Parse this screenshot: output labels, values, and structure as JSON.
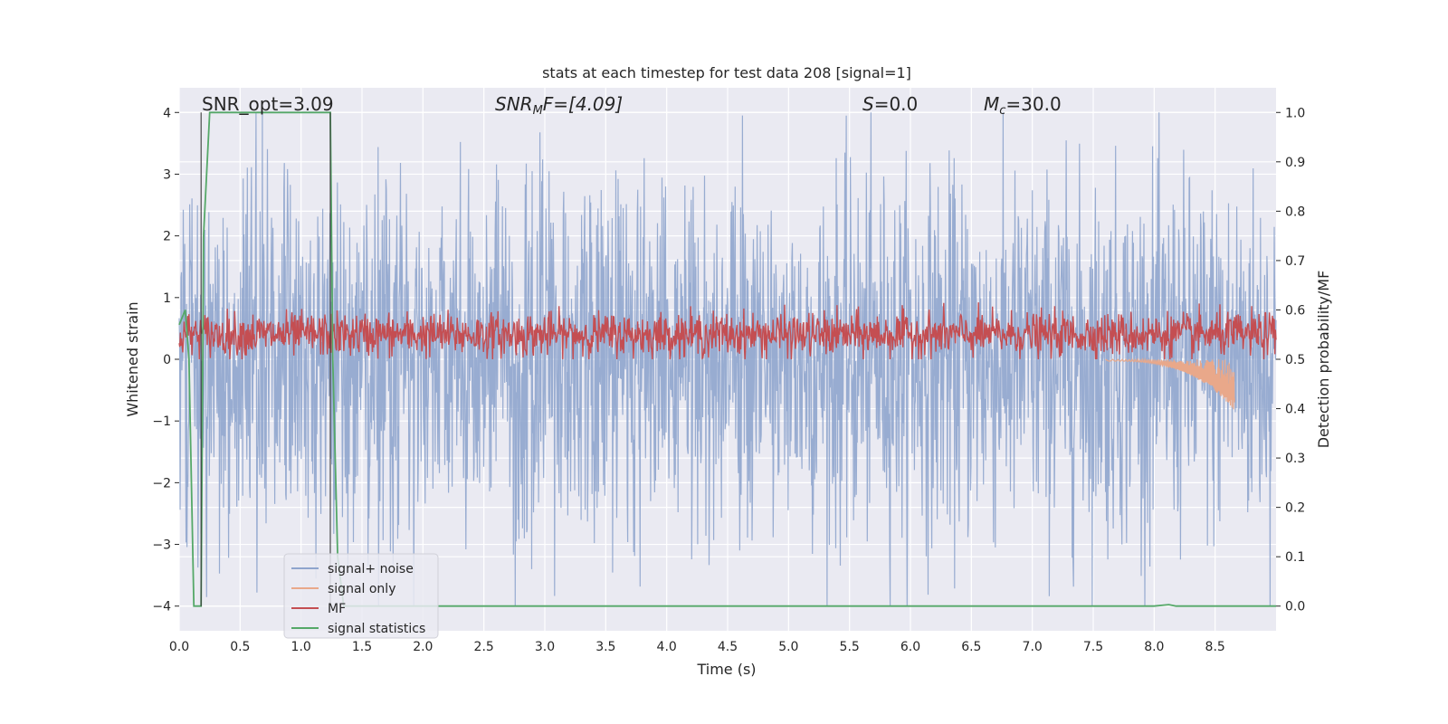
{
  "chart_data": {
    "type": "line",
    "title": "stats at each timestep for test data 208 [signal=1]",
    "xlabel": "Time (s)",
    "ylabel": "Whitened strain",
    "y2label": "Detection probability/MF",
    "xlim": [
      0.0,
      9.0
    ],
    "ylim": [
      -4.4,
      4.4
    ],
    "y2lim": [
      -0.05,
      1.05
    ],
    "x_ticks": [
      "0.0",
      "0.5",
      "1.0",
      "1.5",
      "2.0",
      "2.5",
      "3.0",
      "3.5",
      "4.0",
      "4.5",
      "5.0",
      "5.5",
      "6.0",
      "6.5",
      "7.0",
      "7.5",
      "8.0",
      "8.5"
    ],
    "y_ticks": [
      "4",
      "3",
      "2",
      "1",
      "0",
      "−1",
      "−2",
      "−3",
      "−4"
    ],
    "y2_ticks": [
      "1.0",
      "0.9",
      "0.8",
      "0.7",
      "0.6",
      "0.5",
      "0.4",
      "0.3",
      "0.2",
      "0.1",
      "0.0"
    ],
    "grid": true,
    "legend_position": "lower-left",
    "annotations": {
      "snr_opt": "SNR_opt=3.09",
      "snr_mf_prefix": "SNR",
      "snr_mf_sub": "M",
      "snr_mf_suffix": "F=[4.09]",
      "s_label": "S",
      "s_value": "=0.0",
      "mc_label": "M",
      "mc_sub": "c",
      "mc_value": "=30.0"
    },
    "markers": [
      0.18,
      1.24
    ],
    "series": [
      {
        "name": "signal+ noise",
        "color": "#8fa5cd",
        "style": "dense noisy trace, amplitude about ±2.5 with peaks near ±4"
      },
      {
        "name": "signal only",
        "color": "#e9a88a",
        "note": "chirp rising near 8.0–8.65 s, dipping to about -0.8"
      },
      {
        "name": "MF",
        "color": "#c44e52",
        "note": "noisy band on right axis between about 0.50 and 0.62"
      },
      {
        "name": "signal statistics",
        "color": "#55a868",
        "x": [
          0.0,
          0.05,
          0.08,
          0.12,
          0.18,
          0.2,
          0.25,
          1.24,
          1.26,
          1.3,
          1.35,
          2.0,
          4.0,
          6.0,
          8.0,
          8.08,
          8.12,
          8.18,
          9.0
        ],
        "values": [
          0.57,
          0.6,
          0.5,
          0.0,
          0.0,
          0.75,
          1.0,
          1.0,
          0.5,
          0.1,
          0.0,
          0.0,
          0.0,
          0.0,
          0.0,
          0.002,
          0.003,
          0.0,
          0.0
        ]
      }
    ]
  }
}
